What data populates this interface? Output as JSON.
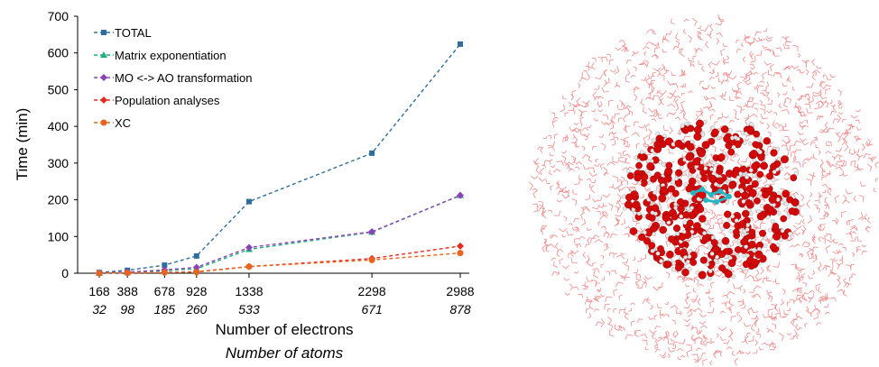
{
  "chart_data": {
    "type": "line",
    "ylabel": "Time (min)",
    "xlabel": "Number of electrons",
    "xlabel2": "Number of atoms",
    "ylim": [
      0,
      700
    ],
    "yticks": [
      0,
      100,
      200,
      300,
      400,
      500,
      600,
      700
    ],
    "x": [
      168,
      388,
      678,
      928,
      1338,
      2298,
      2988
    ],
    "x_tick_labels": [
      "168",
      "388",
      "678",
      "928",
      "1338",
      "2298",
      "2988"
    ],
    "x_tick_labels2": [
      "32",
      "98",
      "185",
      "260",
      "533",
      "671",
      "878"
    ],
    "legend_placement": "top-left",
    "series": [
      {
        "name": "TOTAL",
        "color": "#2e6e9e",
        "marker": "square",
        "values": [
          2,
          8,
          22,
          47,
          195,
          327,
          624
        ]
      },
      {
        "name": "Matrix exponentiation",
        "color": "#22b07a",
        "marker": "triangle",
        "values": [
          0,
          2,
          7,
          12,
          65,
          112,
          212
        ]
      },
      {
        "name": "MO <-> AO transformation",
        "color": "#8a44b8",
        "marker": "diamond",
        "values": [
          1,
          3,
          9,
          16,
          70,
          113,
          212
        ]
      },
      {
        "name": "Population analyses",
        "color": "#e52b1f",
        "marker": "diamond",
        "values": [
          0,
          1,
          2,
          4,
          18,
          40,
          74
        ]
      },
      {
        "name": "XC",
        "color": "#e8641e",
        "marker": "circle",
        "values": [
          0,
          1,
          2,
          3,
          18,
          36,
          55
        ]
      }
    ]
  },
  "molecule_image": {
    "icon": "water-box-molecular-render",
    "solvent_color": "#f08a8a",
    "oxygen_color": "#d40a0a",
    "hydrogen_color": "#e8e8e8",
    "solute_color": "#2ab5c4"
  }
}
